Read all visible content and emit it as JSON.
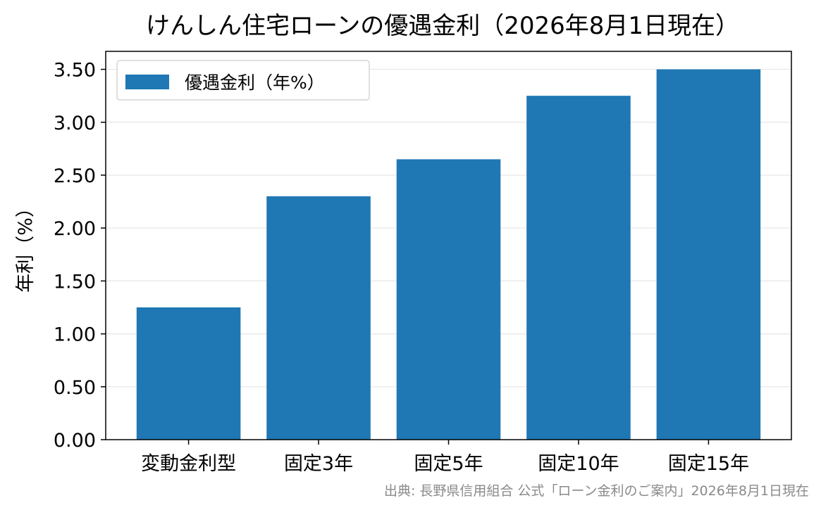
{
  "chart_data": {
    "type": "bar",
    "title": "けんしん住宅ローンの優遇金利（2026年8月1日現在）",
    "categories": [
      "変動金利型",
      "固定3年",
      "固定5年",
      "固定10年",
      "固定15年"
    ],
    "series": [
      {
        "name": "優遇金利（年%）",
        "values": [
          1.25,
          2.3,
          2.65,
          3.25,
          3.5
        ]
      }
    ],
    "xlabel": "",
    "ylabel": "年利（%）",
    "ylim": [
      0,
      3.67
    ],
    "yticks": [
      "0.00",
      "0.50",
      "1.00",
      "1.50",
      "2.00",
      "2.50",
      "3.00",
      "3.50"
    ],
    "ytick_values": [
      0,
      0.5,
      1.0,
      1.5,
      2.0,
      2.5,
      3.0,
      3.5
    ],
    "grid": "y",
    "legend_position": "top-left",
    "bar_color": "#1f77b4",
    "grid_color": "#e6e6e6",
    "source_note": "出典: 長野県信用組合 公式「ローン金利のご案内」2026年8月1日現在"
  }
}
